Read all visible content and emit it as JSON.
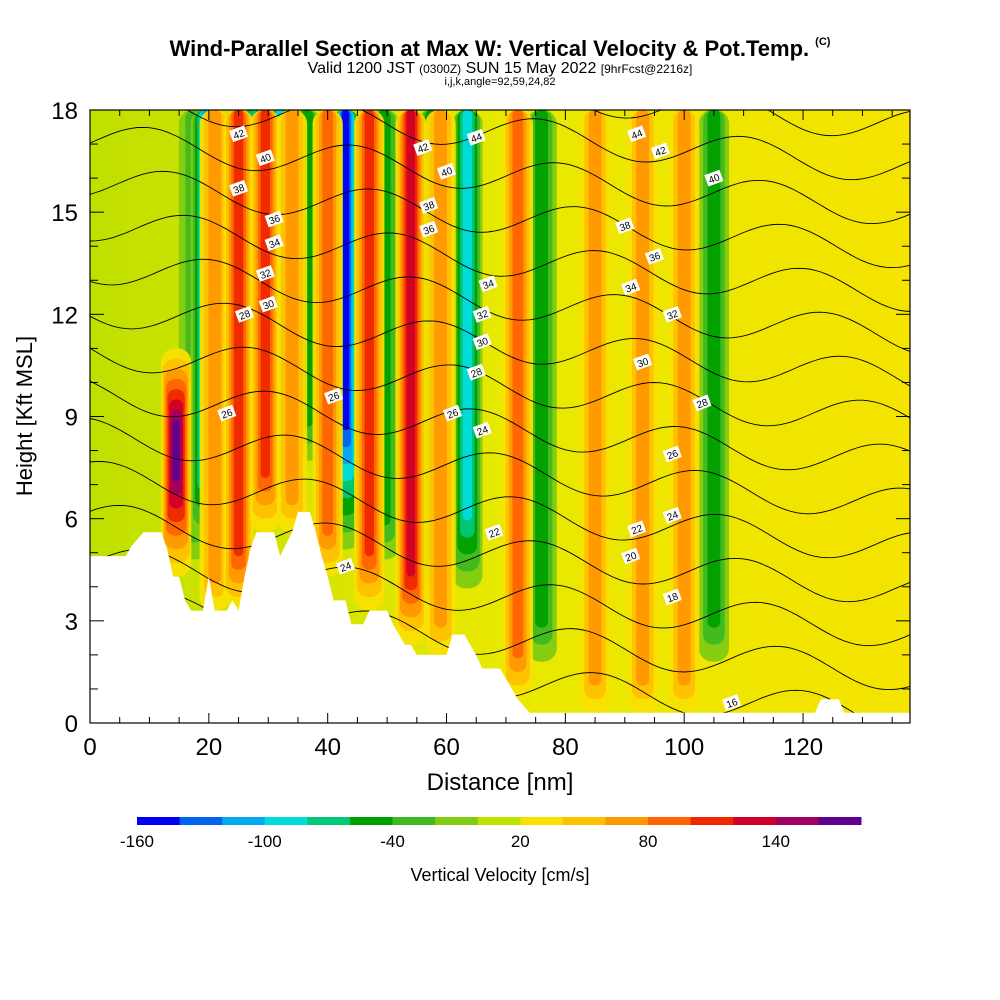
{
  "header": {
    "title": "Wind-Parallel Section at Max W: Vertical Velocity & Pot.Temp.",
    "copyright": "(C)",
    "valid_prefix": "Valid 1200 JST",
    "valid_utc": "(0300Z)",
    "valid_date": "SUN 15 May 2022",
    "forecast": "[9hrFcst@2216z]",
    "indices": "i,j,k,angle=92,59,24,82"
  },
  "chart_data": {
    "type": "heatmap",
    "title": "Wind-Parallel Section at Max W: Vertical Velocity & Pot.Temp.",
    "xlabel": "Distance [nm]",
    "ylabel": "Height [Kft MSL]",
    "xlim": [
      0,
      138
    ],
    "ylim": [
      0,
      18
    ],
    "x_ticks": [
      0,
      20,
      40,
      60,
      80,
      100,
      120
    ],
    "y_ticks": [
      0,
      3,
      6,
      9,
      12,
      15,
      18
    ],
    "colorbar": {
      "label": "Vertical Velocity [cm/s]",
      "tick_labels": [
        "-160",
        "-100",
        "-40",
        "20",
        "80",
        "140"
      ],
      "tick_values": [
        -160,
        -100,
        -40,
        20,
        80,
        140
      ],
      "levels": [
        -160,
        -140,
        -120,
        -100,
        -80,
        -60,
        -40,
        -20,
        0,
        20,
        40,
        60,
        80,
        100,
        120,
        140,
        160
      ],
      "colors": [
        "#0000f0",
        "#0064f0",
        "#00aaf0",
        "#00dcdc",
        "#00c878",
        "#00a000",
        "#40b820",
        "#80cc10",
        "#c0e000",
        "#f8e000",
        "#ffc000",
        "#ff9800",
        "#ff6400",
        "#f02800",
        "#d00028",
        "#a00060",
        "#600090"
      ]
    },
    "updraft_columns": [
      {
        "x": 14.5,
        "w_max": 150,
        "top_kft": 11
      },
      {
        "x": 21,
        "w_max": 60,
        "top_kft": 18
      },
      {
        "x": 25,
        "w_max": 90,
        "top_kft": 18
      },
      {
        "x": 29.5,
        "w_max": 90,
        "top_kft": 18
      },
      {
        "x": 34,
        "w_max": 60,
        "top_kft": 18
      },
      {
        "x": 40,
        "w_max": 80,
        "top_kft": 18
      },
      {
        "x": 47,
        "w_max": 90,
        "top_kft": 18
      },
      {
        "x": 54,
        "w_max": 110,
        "top_kft": 18
      },
      {
        "x": 59,
        "w_max": 60,
        "top_kft": 18
      },
      {
        "x": 72,
        "w_max": 80,
        "top_kft": 18
      },
      {
        "x": 85,
        "w_max": 50,
        "top_kft": 18
      },
      {
        "x": 93,
        "w_max": 60,
        "top_kft": 18
      },
      {
        "x": 100,
        "w_max": 60,
        "top_kft": 18
      }
    ],
    "downdraft_columns": [
      {
        "x": 17.5,
        "w_min": -40,
        "top_kft": 18
      },
      {
        "x": 19.5,
        "w_min": -110,
        "top_kft": 18
      },
      {
        "x": 27.5,
        "w_min": -80,
        "top_kft": 18
      },
      {
        "x": 32,
        "w_min": -90,
        "top_kft": 18
      },
      {
        "x": 36.5,
        "w_min": -50,
        "top_kft": 18
      },
      {
        "x": 43,
        "w_min": -160,
        "top_kft": 18
      },
      {
        "x": 49.5,
        "w_min": -60,
        "top_kft": 18
      },
      {
        "x": 57.5,
        "w_min": -60,
        "top_kft": 18
      },
      {
        "x": 63.5,
        "w_min": -100,
        "top_kft": 18
      },
      {
        "x": 76,
        "w_min": -50,
        "top_kft": 18
      },
      {
        "x": 105,
        "w_min": -60,
        "top_kft": 18
      }
    ],
    "theta_label_values": [
      16,
      18,
      20,
      22,
      24,
      26,
      28,
      30,
      32,
      34,
      36,
      38,
      40,
      42,
      44
    ],
    "theta_labels": [
      {
        "text": "42",
        "x": 25,
        "y": 17.3
      },
      {
        "text": "40",
        "x": 29.5,
        "y": 16.6
      },
      {
        "text": "38",
        "x": 25,
        "y": 15.7
      },
      {
        "text": "36",
        "x": 31,
        "y": 14.8
      },
      {
        "text": "34",
        "x": 31,
        "y": 14.1
      },
      {
        "text": "32",
        "x": 29.5,
        "y": 13.2
      },
      {
        "text": "30",
        "x": 30,
        "y": 12.3
      },
      {
        "text": "28",
        "x": 26,
        "y": 12.0
      },
      {
        "text": "26",
        "x": 23,
        "y": 9.1
      },
      {
        "text": "26",
        "x": 41,
        "y": 9.6
      },
      {
        "text": "24",
        "x": 43,
        "y": 4.6
      },
      {
        "text": "42",
        "x": 56,
        "y": 16.9
      },
      {
        "text": "44",
        "x": 65,
        "y": 17.2
      },
      {
        "text": "40",
        "x": 60,
        "y": 16.2
      },
      {
        "text": "38",
        "x": 57,
        "y": 15.2
      },
      {
        "text": "36",
        "x": 57,
        "y": 14.5
      },
      {
        "text": "34",
        "x": 67,
        "y": 12.9
      },
      {
        "text": "32",
        "x": 66,
        "y": 12.0
      },
      {
        "text": "30",
        "x": 66,
        "y": 11.2
      },
      {
        "text": "28",
        "x": 65,
        "y": 10.3
      },
      {
        "text": "26",
        "x": 61,
        "y": 9.1
      },
      {
        "text": "24",
        "x": 66,
        "y": 8.6
      },
      {
        "text": "22",
        "x": 68,
        "y": 5.6
      },
      {
        "text": "44",
        "x": 92,
        "y": 17.3
      },
      {
        "text": "42",
        "x": 96,
        "y": 16.8
      },
      {
        "text": "40",
        "x": 105,
        "y": 16.0
      },
      {
        "text": "38",
        "x": 90,
        "y": 14.6
      },
      {
        "text": "36",
        "x": 95,
        "y": 13.7
      },
      {
        "text": "34",
        "x": 91,
        "y": 12.8
      },
      {
        "text": "32",
        "x": 98,
        "y": 12.0
      },
      {
        "text": "30",
        "x": 93,
        "y": 10.6
      },
      {
        "text": "28",
        "x": 103,
        "y": 9.4
      },
      {
        "text": "26",
        "x": 98,
        "y": 7.9
      },
      {
        "text": "24",
        "x": 98,
        "y": 6.1
      },
      {
        "text": "22",
        "x": 92,
        "y": 5.7
      },
      {
        "text": "20",
        "x": 91,
        "y": 4.9
      },
      {
        "text": "18",
        "x": 98,
        "y": 3.7
      },
      {
        "text": "16",
        "x": 108,
        "y": 0.6
      }
    ],
    "terrain_kft": [
      [
        0,
        4.9
      ],
      [
        6,
        4.9
      ],
      [
        7,
        5.2
      ],
      [
        9,
        5.6
      ],
      [
        12,
        5.6
      ],
      [
        13,
        5.1
      ],
      [
        14,
        4.3
      ],
      [
        15,
        4.3
      ],
      [
        16,
        3.6
      ],
      [
        17,
        3.3
      ],
      [
        19,
        3.3
      ],
      [
        20,
        4.3
      ],
      [
        21,
        3.3
      ],
      [
        23,
        3.3
      ],
      [
        24,
        3.6
      ],
      [
        25,
        3.3
      ],
      [
        26,
        4.3
      ],
      [
        27,
        5.1
      ],
      [
        28,
        5.6
      ],
      [
        31,
        5.6
      ],
      [
        32,
        4.9
      ],
      [
        34,
        5.6
      ],
      [
        35,
        6.2
      ],
      [
        37,
        6.2
      ],
      [
        38,
        5.6
      ],
      [
        39,
        4.9
      ],
      [
        40,
        4.3
      ],
      [
        41,
        3.6
      ],
      [
        43,
        3.6
      ],
      [
        44,
        2.9
      ],
      [
        46,
        2.9
      ],
      [
        47,
        3.3
      ],
      [
        50,
        3.3
      ],
      [
        51,
        2.9
      ],
      [
        52,
        2.6
      ],
      [
        53,
        2.3
      ],
      [
        54,
        2.3
      ],
      [
        55,
        2.0
      ],
      [
        60,
        2.0
      ],
      [
        61,
        2.6
      ],
      [
        63,
        2.6
      ],
      [
        64,
        2.3
      ],
      [
        65,
        2.0
      ],
      [
        66,
        1.6
      ],
      [
        69,
        1.6
      ],
      [
        70,
        1.3
      ],
      [
        71,
        1.0
      ],
      [
        72,
        0.7
      ],
      [
        74,
        0.3
      ],
      [
        122,
        0.3
      ],
      [
        123,
        0.7
      ],
      [
        126,
        0.7
      ],
      [
        127,
        0.3
      ],
      [
        138,
        0.3
      ]
    ]
  }
}
